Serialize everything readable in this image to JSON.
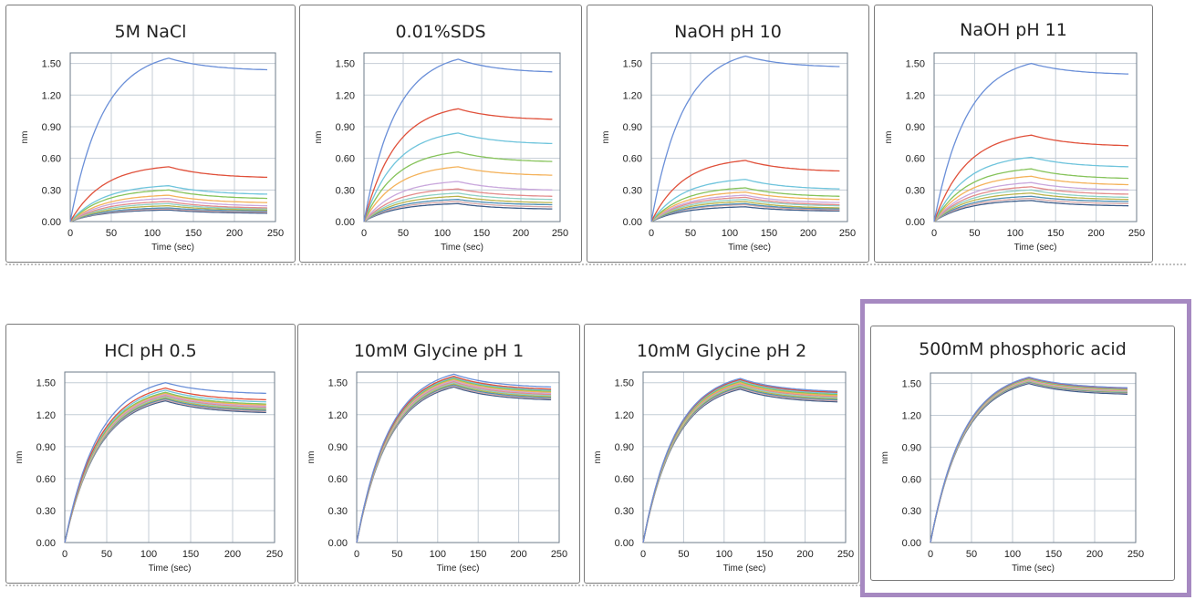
{
  "colors": {
    "highlight": "#a689c1",
    "grid": "#c4cdd6",
    "series": [
      "#6a8fd8",
      "#e0503a",
      "#6fc4dc",
      "#86c35a",
      "#f4b25a",
      "#c9a7dc",
      "#e38b8b",
      "#8fd0c5",
      "#b9b34a",
      "#4d8fb5",
      "#d7a8a8",
      "#3e5d8a"
    ]
  },
  "highlighted_panel": 7,
  "chart_data": [
    {
      "type": "line",
      "title": "5M NaCl",
      "xlabel": "Time (sec)",
      "ylabel": "nm",
      "xlim": [
        0,
        250
      ],
      "ylim": [
        0,
        1.6
      ],
      "xticks": [
        "0",
        "50",
        "100",
        "150",
        "200",
        "250"
      ],
      "yticks": [
        "0.00",
        "0.30",
        "0.60",
        "0.90",
        "1.20",
        "1.50"
      ],
      "assoc_end": 120,
      "end_time": 240,
      "series_peaks": [
        1.55,
        0.52,
        0.34,
        0.3,
        0.25,
        0.22,
        0.19,
        0.17,
        0.15,
        0.13,
        0.12,
        0.11
      ],
      "series_ends": [
        1.44,
        0.42,
        0.26,
        0.22,
        0.18,
        0.15,
        0.13,
        0.12,
        0.11,
        0.1,
        0.09,
        0.08
      ]
    },
    {
      "type": "line",
      "title": "0.01%SDS",
      "xlabel": "Time (sec)",
      "ylabel": "nm",
      "xlim": [
        0,
        250
      ],
      "ylim": [
        0,
        1.6
      ],
      "xticks": [
        "0",
        "50",
        "100",
        "150",
        "200",
        "250"
      ],
      "yticks": [
        "0.00",
        "0.30",
        "0.60",
        "0.90",
        "1.20",
        "1.50"
      ],
      "assoc_end": 120,
      "end_time": 240,
      "series_peaks": [
        1.54,
        1.07,
        0.84,
        0.66,
        0.52,
        0.38,
        0.31,
        0.27,
        0.24,
        0.21,
        0.19,
        0.17
      ],
      "series_ends": [
        1.42,
        0.97,
        0.74,
        0.57,
        0.44,
        0.3,
        0.24,
        0.21,
        0.18,
        0.16,
        0.14,
        0.12
      ]
    },
    {
      "type": "line",
      "title": "NaOH pH 10",
      "xlabel": "Time (sec)",
      "ylabel": "nm",
      "xlim": [
        0,
        250
      ],
      "ylim": [
        0,
        1.6
      ],
      "xticks": [
        "0",
        "50",
        "100",
        "150",
        "200",
        "250"
      ],
      "yticks": [
        "0.00",
        "0.30",
        "0.60",
        "0.90",
        "1.20",
        "1.50"
      ],
      "assoc_end": 120,
      "end_time": 240,
      "series_peaks": [
        1.57,
        0.58,
        0.4,
        0.32,
        0.28,
        0.25,
        0.23,
        0.21,
        0.19,
        0.17,
        0.16,
        0.14
      ],
      "series_ends": [
        1.47,
        0.48,
        0.31,
        0.24,
        0.21,
        0.18,
        0.16,
        0.15,
        0.13,
        0.12,
        0.11,
        0.1
      ]
    },
    {
      "type": "line",
      "title": "NaOH pH 11",
      "xlabel": "Time (sec)",
      "ylabel": "nm",
      "xlim": [
        0,
        250
      ],
      "ylim": [
        0,
        1.6
      ],
      "xticks": [
        "0",
        "50",
        "100",
        "150",
        "200",
        "250"
      ],
      "yticks": [
        "0.00",
        "0.30",
        "0.60",
        "0.90",
        "1.20",
        "1.50"
      ],
      "assoc_end": 120,
      "end_time": 240,
      "series_peaks": [
        1.5,
        0.82,
        0.61,
        0.5,
        0.43,
        0.37,
        0.33,
        0.3,
        0.27,
        0.24,
        0.22,
        0.2
      ],
      "series_ends": [
        1.4,
        0.72,
        0.52,
        0.41,
        0.35,
        0.3,
        0.26,
        0.23,
        0.21,
        0.19,
        0.17,
        0.15
      ]
    },
    {
      "type": "line",
      "title": "HCl pH 0.5",
      "xlabel": "Time (sec)",
      "ylabel": "nm",
      "xlim": [
        0,
        250
      ],
      "ylim": [
        0,
        1.6
      ],
      "xticks": [
        "0",
        "50",
        "100",
        "150",
        "200",
        "250"
      ],
      "yticks": [
        "0.00",
        "0.30",
        "0.60",
        "0.90",
        "1.20",
        "1.50"
      ],
      "assoc_end": 120,
      "end_time": 240,
      "series_peaks": [
        1.5,
        1.45,
        1.43,
        1.41,
        1.4,
        1.39,
        1.38,
        1.37,
        1.36,
        1.35,
        1.34,
        1.33
      ],
      "series_ends": [
        1.4,
        1.34,
        1.32,
        1.3,
        1.29,
        1.28,
        1.27,
        1.26,
        1.25,
        1.24,
        1.23,
        1.22
      ]
    },
    {
      "type": "line",
      "title": "10mM Glycine pH 1",
      "xlabel": "Time (sec)",
      "ylabel": "nm",
      "xlim": [
        0,
        250
      ],
      "ylim": [
        0,
        1.6
      ],
      "xticks": [
        "0",
        "50",
        "100",
        "150",
        "200",
        "250"
      ],
      "yticks": [
        "0.00",
        "0.30",
        "0.60",
        "0.90",
        "1.20",
        "1.50"
      ],
      "assoc_end": 120,
      "end_time": 240,
      "series_peaks": [
        1.58,
        1.56,
        1.55,
        1.54,
        1.53,
        1.52,
        1.51,
        1.5,
        1.49,
        1.48,
        1.47,
        1.46
      ],
      "series_ends": [
        1.46,
        1.44,
        1.43,
        1.42,
        1.41,
        1.4,
        1.39,
        1.38,
        1.37,
        1.36,
        1.35,
        1.34
      ]
    },
    {
      "type": "line",
      "title": "10mM Glycine pH 2",
      "xlabel": "Time (sec)",
      "ylabel": "nm",
      "xlim": [
        0,
        250
      ],
      "ylim": [
        0,
        1.6
      ],
      "xticks": [
        "0",
        "50",
        "100",
        "150",
        "200",
        "250"
      ],
      "yticks": [
        "0.00",
        "0.30",
        "0.60",
        "0.90",
        "1.20",
        "1.50"
      ],
      "assoc_end": 120,
      "end_time": 240,
      "series_peaks": [
        1.54,
        1.53,
        1.52,
        1.51,
        1.5,
        1.5,
        1.49,
        1.48,
        1.47,
        1.46,
        1.45,
        1.44
      ],
      "series_ends": [
        1.42,
        1.41,
        1.4,
        1.39,
        1.38,
        1.38,
        1.37,
        1.36,
        1.35,
        1.34,
        1.33,
        1.32
      ]
    },
    {
      "type": "line",
      "title": "500mM phosphoric acid",
      "xlabel": "Time (sec)",
      "ylabel": "nm",
      "xlim": [
        0,
        250
      ],
      "ylim": [
        0,
        1.6
      ],
      "xticks": [
        "0",
        "50",
        "100",
        "150",
        "200",
        "250"
      ],
      "yticks": [
        "0.00",
        "0.30",
        "0.60",
        "0.90",
        "1.20",
        "1.50"
      ],
      "assoc_end": 120,
      "end_time": 240,
      "series_peaks": [
        1.56,
        1.555,
        1.55,
        1.545,
        1.54,
        1.535,
        1.53,
        1.525,
        1.52,
        1.515,
        1.51,
        1.5
      ],
      "series_ends": [
        1.46,
        1.455,
        1.45,
        1.445,
        1.44,
        1.435,
        1.43,
        1.425,
        1.42,
        1.415,
        1.41,
        1.4
      ]
    }
  ]
}
